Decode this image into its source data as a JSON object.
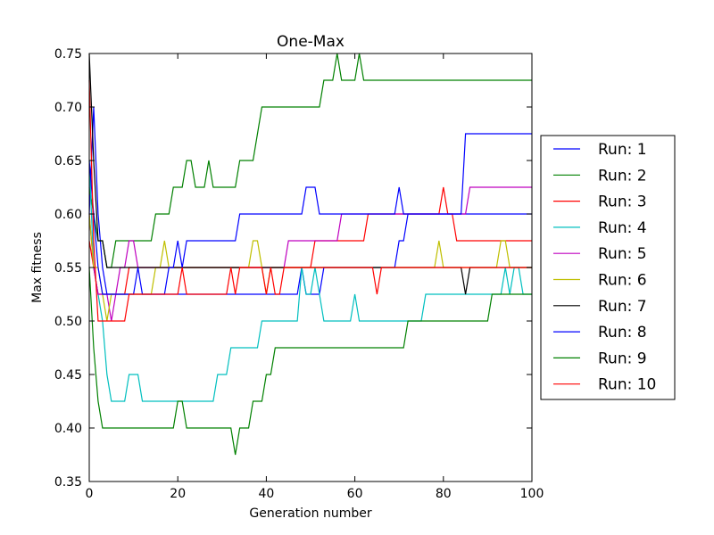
{
  "chart_data": {
    "type": "line",
    "title": "One-Max",
    "xlabel": "Generation number",
    "ylabel": "Max fitness",
    "xlim": [
      0,
      100
    ],
    "ylim": [
      0.35,
      0.75
    ],
    "x_ticks": [
      "0",
      "20",
      "40",
      "60",
      "80",
      "100"
    ],
    "y_ticks": [
      "0.35",
      "0.40",
      "0.45",
      "0.50",
      "0.55",
      "0.60",
      "0.65",
      "0.70",
      "0.75"
    ],
    "legend_position": "right",
    "grid": false,
    "series": [
      {
        "name": "Run: 1",
        "color": "#0000ff",
        "points": [
          [
            0,
            0.6
          ],
          [
            1,
            0.7
          ],
          [
            2,
            0.6
          ],
          [
            3,
            0.55
          ],
          [
            4,
            0.525
          ],
          [
            47,
            0.525
          ],
          [
            48,
            0.55
          ],
          [
            49,
            0.525
          ],
          [
            52,
            0.525
          ],
          [
            53,
            0.55
          ],
          [
            69,
            0.55
          ],
          [
            70,
            0.575
          ],
          [
            71,
            0.575
          ],
          [
            72,
            0.6
          ],
          [
            100,
            0.6
          ]
        ]
      },
      {
        "name": "Run: 2",
        "color": "#008000",
        "points": [
          [
            0,
            0.625
          ],
          [
            1,
            0.6
          ],
          [
            2,
            0.575
          ],
          [
            3,
            0.575
          ],
          [
            4,
            0.55
          ],
          [
            5,
            0.55
          ],
          [
            6,
            0.575
          ],
          [
            14,
            0.575
          ],
          [
            15,
            0.6
          ],
          [
            18,
            0.6
          ],
          [
            19,
            0.625
          ],
          [
            21,
            0.625
          ],
          [
            22,
            0.65
          ],
          [
            23,
            0.65
          ],
          [
            24,
            0.625
          ],
          [
            26,
            0.625
          ],
          [
            27,
            0.65
          ],
          [
            28,
            0.625
          ],
          [
            33,
            0.625
          ],
          [
            34,
            0.65
          ],
          [
            36,
            0.65
          ],
          [
            37,
            0.65
          ],
          [
            38,
            0.675
          ],
          [
            39,
            0.7
          ],
          [
            51,
            0.7
          ],
          [
            52,
            0.7
          ],
          [
            53,
            0.725
          ],
          [
            55,
            0.725
          ],
          [
            56,
            0.75
          ],
          [
            57,
            0.725
          ],
          [
            60,
            0.725
          ],
          [
            61,
            0.75
          ],
          [
            62,
            0.725
          ],
          [
            100,
            0.725
          ]
        ]
      },
      {
        "name": "Run: 3",
        "color": "#ff0000",
        "points": [
          [
            0,
            0.575
          ],
          [
            1,
            0.55
          ],
          [
            2,
            0.525
          ],
          [
            8,
            0.525
          ],
          [
            9,
            0.55
          ],
          [
            50,
            0.55
          ],
          [
            51,
            0.575
          ],
          [
            62,
            0.575
          ],
          [
            63,
            0.6
          ],
          [
            79,
            0.6
          ],
          [
            80,
            0.625
          ],
          [
            81,
            0.6
          ],
          [
            82,
            0.6
          ],
          [
            83,
            0.575
          ],
          [
            100,
            0.575
          ]
        ]
      },
      {
        "name": "Run: 4",
        "color": "#00bfbf",
        "points": [
          [
            0,
            0.65
          ],
          [
            1,
            0.55
          ],
          [
            2,
            0.525
          ],
          [
            3,
            0.5
          ],
          [
            4,
            0.45
          ],
          [
            5,
            0.425
          ],
          [
            8,
            0.425
          ],
          [
            9,
            0.45
          ],
          [
            11,
            0.45
          ],
          [
            12,
            0.425
          ],
          [
            20,
            0.425
          ],
          [
            21,
            0.425
          ],
          [
            28,
            0.425
          ],
          [
            29,
            0.45
          ],
          [
            31,
            0.45
          ],
          [
            32,
            0.475
          ],
          [
            38,
            0.475
          ],
          [
            39,
            0.5
          ],
          [
            47,
            0.5
          ],
          [
            48,
            0.55
          ],
          [
            49,
            0.525
          ],
          [
            50,
            0.525
          ],
          [
            51,
            0.55
          ],
          [
            52,
            0.525
          ],
          [
            53,
            0.5
          ],
          [
            59,
            0.5
          ],
          [
            60,
            0.525
          ],
          [
            61,
            0.5
          ],
          [
            75,
            0.5
          ],
          [
            76,
            0.525
          ],
          [
            93,
            0.525
          ],
          [
            94,
            0.55
          ],
          [
            95,
            0.525
          ],
          [
            96,
            0.55
          ],
          [
            97,
            0.55
          ],
          [
            98,
            0.525
          ],
          [
            100,
            0.525
          ]
        ]
      },
      {
        "name": "Run: 5",
        "color": "#bf00bf",
        "points": [
          [
            0,
            0.6
          ],
          [
            1,
            0.55
          ],
          [
            2,
            0.525
          ],
          [
            4,
            0.525
          ],
          [
            5,
            0.5
          ],
          [
            6,
            0.525
          ],
          [
            7,
            0.55
          ],
          [
            8,
            0.55
          ],
          [
            9,
            0.575
          ],
          [
            10,
            0.575
          ],
          [
            11,
            0.55
          ],
          [
            44,
            0.55
          ],
          [
            45,
            0.575
          ],
          [
            56,
            0.575
          ],
          [
            57,
            0.6
          ],
          [
            85,
            0.6
          ],
          [
            86,
            0.625
          ],
          [
            100,
            0.625
          ]
        ]
      },
      {
        "name": "Run: 6",
        "color": "#bfbf00",
        "points": [
          [
            0,
            0.6
          ],
          [
            1,
            0.55
          ],
          [
            2,
            0.55
          ],
          [
            3,
            0.525
          ],
          [
            4,
            0.5
          ],
          [
            5,
            0.525
          ],
          [
            14,
            0.525
          ],
          [
            15,
            0.55
          ],
          [
            16,
            0.55
          ],
          [
            17,
            0.575
          ],
          [
            18,
            0.55
          ],
          [
            36,
            0.55
          ],
          [
            37,
            0.575
          ],
          [
            38,
            0.575
          ],
          [
            39,
            0.55
          ],
          [
            40,
            0.525
          ],
          [
            41,
            0.55
          ],
          [
            78,
            0.55
          ],
          [
            79,
            0.575
          ],
          [
            80,
            0.55
          ],
          [
            92,
            0.55
          ],
          [
            93,
            0.575
          ],
          [
            94,
            0.575
          ],
          [
            95,
            0.55
          ],
          [
            100,
            0.55
          ]
        ]
      },
      {
        "name": "Run: 7",
        "color": "#000000",
        "points": [
          [
            0,
            0.75
          ],
          [
            1,
            0.65
          ],
          [
            2,
            0.575
          ],
          [
            3,
            0.575
          ],
          [
            4,
            0.55
          ],
          [
            84,
            0.55
          ],
          [
            85,
            0.525
          ],
          [
            86,
            0.55
          ],
          [
            100,
            0.55
          ]
        ]
      },
      {
        "name": "Run: 8",
        "color": "#0000ff",
        "points": [
          [
            0,
            0.65
          ],
          [
            1,
            0.6
          ],
          [
            2,
            0.55
          ],
          [
            3,
            0.525
          ],
          [
            10,
            0.525
          ],
          [
            11,
            0.55
          ],
          [
            12,
            0.525
          ],
          [
            17,
            0.525
          ],
          [
            18,
            0.55
          ],
          [
            19,
            0.55
          ],
          [
            20,
            0.575
          ],
          [
            21,
            0.55
          ],
          [
            22,
            0.575
          ],
          [
            33,
            0.575
          ],
          [
            34,
            0.6
          ],
          [
            48,
            0.6
          ],
          [
            49,
            0.625
          ],
          [
            51,
            0.625
          ],
          [
            52,
            0.6
          ],
          [
            69,
            0.6
          ],
          [
            70,
            0.625
          ],
          [
            71,
            0.6
          ],
          [
            84,
            0.6
          ],
          [
            85,
            0.675
          ],
          [
            100,
            0.675
          ]
        ]
      },
      {
        "name": "Run: 9",
        "color": "#008000",
        "points": [
          [
            0,
            0.55
          ],
          [
            1,
            0.475
          ],
          [
            2,
            0.425
          ],
          [
            3,
            0.4
          ],
          [
            19,
            0.4
          ],
          [
            20,
            0.425
          ],
          [
            21,
            0.425
          ],
          [
            22,
            0.4
          ],
          [
            32,
            0.4
          ],
          [
            33,
            0.375
          ],
          [
            34,
            0.4
          ],
          [
            36,
            0.4
          ],
          [
            37,
            0.425
          ],
          [
            39,
            0.425
          ],
          [
            40,
            0.45
          ],
          [
            41,
            0.45
          ],
          [
            42,
            0.475
          ],
          [
            71,
            0.475
          ],
          [
            72,
            0.5
          ],
          [
            90,
            0.5
          ],
          [
            91,
            0.525
          ],
          [
            100,
            0.525
          ]
        ]
      },
      {
        "name": "Run: 10",
        "color": "#ff0000",
        "points": [
          [
            0,
            0.725
          ],
          [
            1,
            0.575
          ],
          [
            2,
            0.5
          ],
          [
            8,
            0.5
          ],
          [
            9,
            0.525
          ],
          [
            20,
            0.525
          ],
          [
            21,
            0.55
          ],
          [
            22,
            0.525
          ],
          [
            31,
            0.525
          ],
          [
            32,
            0.55
          ],
          [
            33,
            0.525
          ],
          [
            34,
            0.55
          ],
          [
            39,
            0.55
          ],
          [
            40,
            0.525
          ],
          [
            41,
            0.55
          ],
          [
            42,
            0.525
          ],
          [
            43,
            0.525
          ],
          [
            44,
            0.55
          ],
          [
            64,
            0.55
          ],
          [
            65,
            0.525
          ],
          [
            66,
            0.55
          ],
          [
            100,
            0.55
          ]
        ]
      }
    ]
  }
}
